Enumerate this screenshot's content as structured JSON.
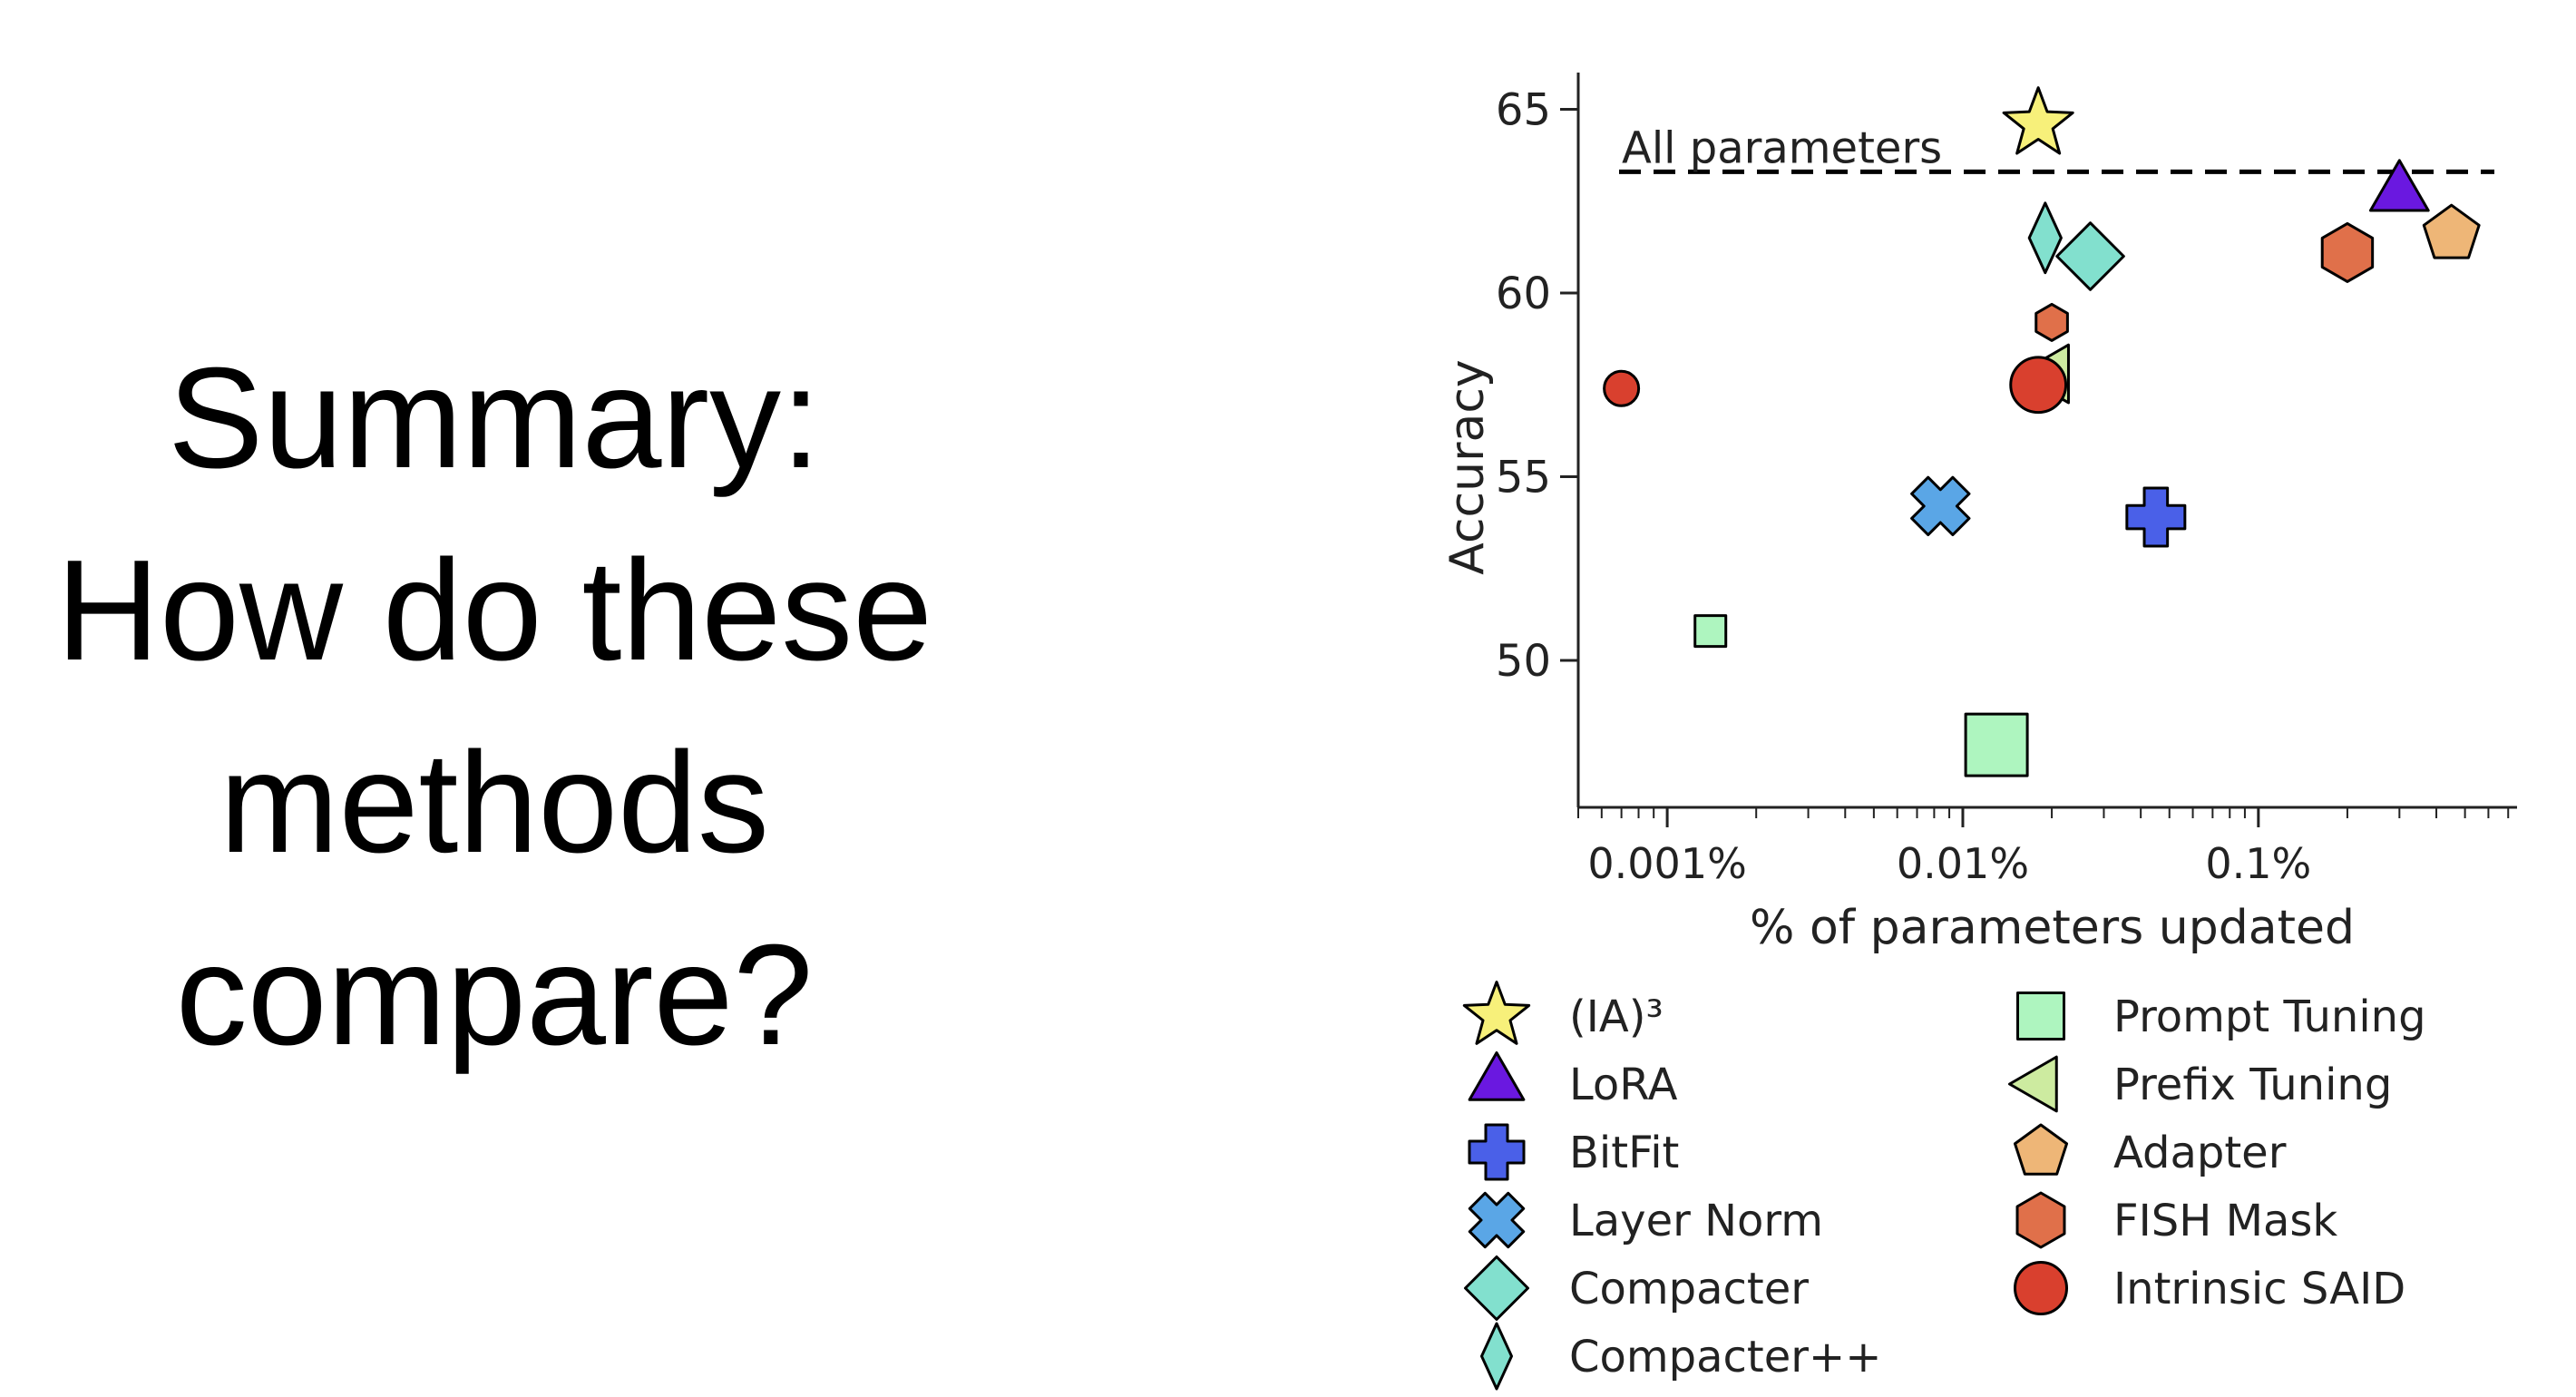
{
  "slide": {
    "title_lines": [
      "Summary:",
      "How do these",
      "methods",
      "compare?"
    ]
  },
  "chart_data": {
    "type": "scatter",
    "xlabel": "% of parameters updated",
    "ylabel": "Accuracy",
    "x_scale": "log",
    "xlim": [
      0.0005,
      0.75
    ],
    "ylim": [
      46,
      66
    ],
    "x_ticks": [
      {
        "value": 0.001,
        "label": "0.001%"
      },
      {
        "value": 0.01,
        "label": "0.01%"
      },
      {
        "value": 0.1,
        "label": "0.1%"
      }
    ],
    "y_ticks": [
      {
        "value": 50,
        "label": "50"
      },
      {
        "value": 55,
        "label": "55"
      },
      {
        "value": 60,
        "label": "60"
      },
      {
        "value": 65,
        "label": "65"
      }
    ],
    "grid": false,
    "legend_position": "bottom",
    "reference_line": {
      "label": "All parameters",
      "y": 63.3,
      "style": "dashed"
    },
    "series": [
      {
        "name": "(IA)³",
        "marker": "star",
        "color": "#f7f07a",
        "points": [
          {
            "x": 0.018,
            "y": 64.6,
            "size": "medium"
          }
        ]
      },
      {
        "name": "LoRA",
        "marker": "triangle-up",
        "color": "#6a18e0",
        "points": [
          {
            "x": 0.3,
            "y": 62.7,
            "size": "medium"
          }
        ]
      },
      {
        "name": "BitFit",
        "marker": "plus",
        "color": "#4a60e8",
        "points": [
          {
            "x": 0.045,
            "y": 53.9,
            "size": "medium"
          }
        ]
      },
      {
        "name": "Layer Norm",
        "marker": "x",
        "color": "#5aa6e6",
        "points": [
          {
            "x": 0.0084,
            "y": 54.2,
            "size": "medium"
          }
        ]
      },
      {
        "name": "Compacter",
        "marker": "diamond",
        "color": "#82e0ce",
        "points": [
          {
            "x": 0.027,
            "y": 61.0,
            "size": "medium"
          }
        ]
      },
      {
        "name": "Compacter++",
        "marker": "thin-diamond",
        "color": "#82e0ce",
        "points": [
          {
            "x": 0.019,
            "y": 61.5,
            "size": "medium"
          }
        ]
      },
      {
        "name": "Prompt Tuning",
        "marker": "square",
        "color": "#aef5bf",
        "points": [
          {
            "x": 0.0014,
            "y": 50.8,
            "size": "small"
          },
          {
            "x": 0.013,
            "y": 47.7,
            "size": "large"
          }
        ]
      },
      {
        "name": "Prefix Tuning",
        "marker": "triangle-left",
        "color": "#cdeba0",
        "points": [
          {
            "x": 0.02,
            "y": 57.8,
            "size": "medium"
          }
        ]
      },
      {
        "name": "Adapter",
        "marker": "pentagon",
        "color": "#eeb677",
        "points": [
          {
            "x": 0.45,
            "y": 61.6,
            "size": "medium"
          }
        ]
      },
      {
        "name": "FISH Mask",
        "marker": "hexagon",
        "color": "#e0704a",
        "points": [
          {
            "x": 0.02,
            "y": 59.2,
            "size": "small"
          },
          {
            "x": 0.2,
            "y": 61.1,
            "size": "medium"
          }
        ]
      },
      {
        "name": "Intrinsic SAID",
        "marker": "circle",
        "color": "#d9402e",
        "points": [
          {
            "x": 0.0007,
            "y": 57.4,
            "size": "small"
          },
          {
            "x": 0.018,
            "y": 57.5,
            "size": "medium"
          }
        ]
      }
    ]
  }
}
